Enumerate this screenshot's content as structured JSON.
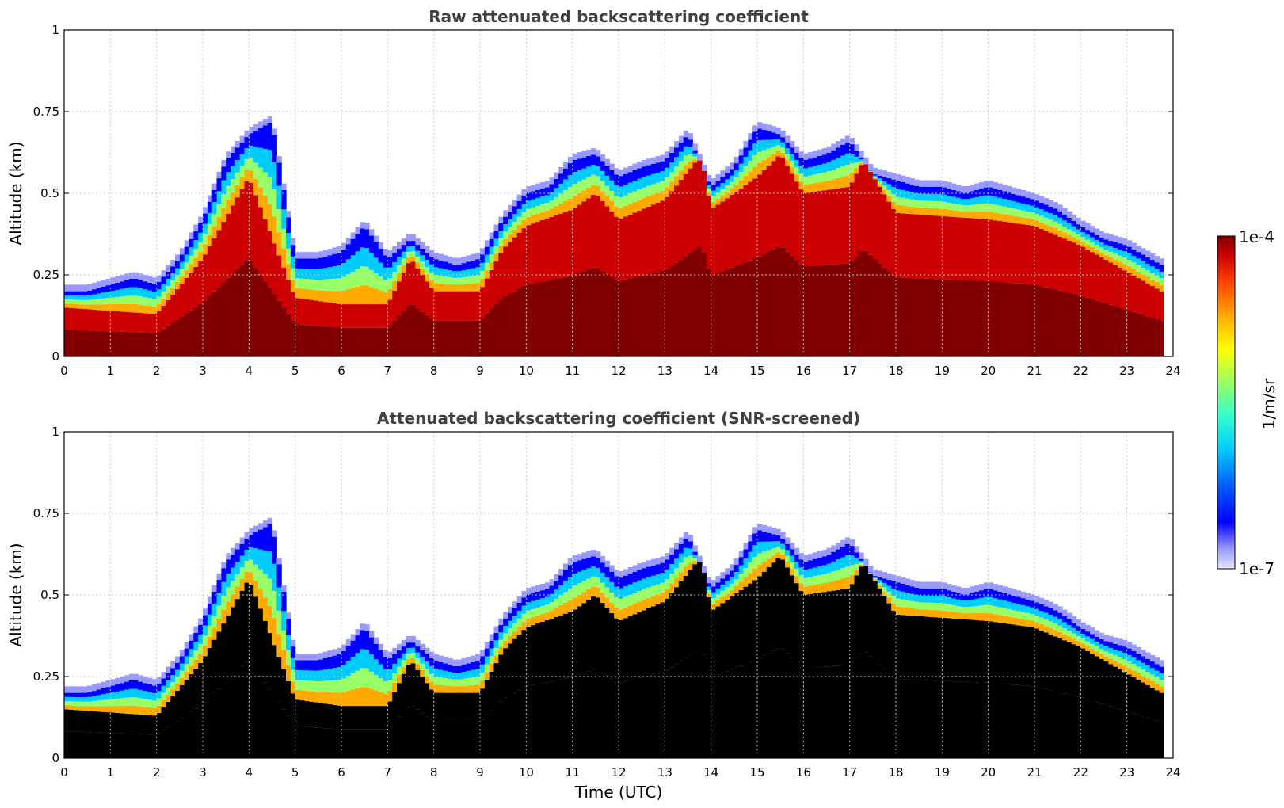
{
  "colors": {
    "jet": [
      "#e6e6fa",
      "#9999ff",
      "#0000ff",
      "#0066ff",
      "#00ccff",
      "#33ffcc",
      "#99ff66",
      "#ffff00",
      "#ffaa00",
      "#ff4400",
      "#cc0000",
      "#800000"
    ],
    "screened_fill": "#000000",
    "grid": "#c8c8c8"
  },
  "colorbar": {
    "label": "1/m/sr",
    "max_label": "1e-4",
    "min_label": "1e-7",
    "range": [
      1e-07,
      0.0001
    ]
  },
  "xlabel": "Time (UTC)",
  "chart_data": [
    {
      "type": "heatmap",
      "title": "Raw attenuated backscattering coefficient",
      "xlabel": "",
      "ylabel": "Altitude (km)",
      "xlim": [
        0,
        24
      ],
      "ylim": [
        0,
        1
      ],
      "xticks": [
        "0",
        "1",
        "2",
        "3",
        "4",
        "5",
        "6",
        "7",
        "8",
        "9",
        "10",
        "11",
        "12",
        "13",
        "14",
        "15",
        "16",
        "17",
        "18",
        "19",
        "20",
        "21",
        "22",
        "23",
        "24"
      ],
      "yticks": [
        "0",
        "0.25",
        "0.5",
        "0.75",
        "1"
      ],
      "grid": true,
      "layer_top_km": {
        "hours": [
          0,
          0.5,
          1,
          1.5,
          2,
          2.5,
          3,
          3.5,
          4,
          4.5,
          5,
          5.5,
          6,
          6.5,
          7,
          7.5,
          8,
          8.5,
          9,
          9.5,
          10,
          10.5,
          11,
          11.5,
          12,
          12.5,
          13,
          13.5,
          14,
          14.5,
          15,
          15.5,
          16,
          16.5,
          17,
          17.5,
          18,
          18.5,
          19,
          19.5,
          20,
          20.5,
          21,
          21.5,
          22,
          22.5,
          23,
          23.5,
          23.75
        ],
        "values": [
          0.2,
          0.2,
          0.22,
          0.24,
          0.22,
          0.3,
          0.42,
          0.6,
          0.68,
          0.72,
          0.3,
          0.3,
          0.32,
          0.4,
          0.3,
          0.36,
          0.3,
          0.28,
          0.3,
          0.42,
          0.5,
          0.52,
          0.6,
          0.62,
          0.55,
          0.58,
          0.6,
          0.68,
          0.52,
          0.58,
          0.7,
          0.68,
          0.6,
          0.62,
          0.66,
          0.56,
          0.54,
          0.52,
          0.52,
          0.5,
          0.52,
          0.5,
          0.48,
          0.45,
          0.4,
          0.36,
          0.34,
          0.3,
          0.28
        ]
      },
      "dense_core_top_km": {
        "hours": [
          0,
          1,
          2,
          3,
          4,
          5,
          6,
          7,
          7.5,
          8,
          9,
          9.5,
          10,
          11,
          11.5,
          12,
          13,
          13.8,
          14,
          15,
          15.5,
          16,
          17,
          17.3,
          18,
          19,
          20,
          21,
          22,
          23,
          23.75
        ],
        "values": [
          0.15,
          0.14,
          0.13,
          0.3,
          0.55,
          0.18,
          0.16,
          0.16,
          0.3,
          0.2,
          0.2,
          0.33,
          0.4,
          0.45,
          0.5,
          0.42,
          0.48,
          0.62,
          0.45,
          0.55,
          0.62,
          0.5,
          0.52,
          0.6,
          0.44,
          0.43,
          0.42,
          0.4,
          0.34,
          0.26,
          0.2
        ]
      }
    },
    {
      "type": "heatmap",
      "title": "Attenuated backscattering coefficient (SNR-screened)",
      "xlabel": "Time (UTC)",
      "ylabel": "Altitude (km)",
      "xlim": [
        0,
        24
      ],
      "ylim": [
        0,
        1
      ],
      "xticks": [
        "0",
        "1",
        "2",
        "3",
        "4",
        "5",
        "6",
        "7",
        "8",
        "9",
        "10",
        "11",
        "12",
        "13",
        "14",
        "15",
        "16",
        "17",
        "18",
        "19",
        "20",
        "21",
        "22",
        "23",
        "24"
      ],
      "yticks": [
        "0",
        "0.25",
        "0.5",
        "0.75",
        "1"
      ],
      "grid": true,
      "layer_top_km": {
        "hours": [
          0,
          0.5,
          1,
          1.5,
          2,
          2.5,
          3,
          3.5,
          4,
          4.5,
          5,
          5.5,
          6,
          6.5,
          7,
          7.5,
          8,
          8.5,
          9,
          9.5,
          10,
          10.5,
          11,
          11.5,
          12,
          12.5,
          13,
          13.5,
          14,
          14.5,
          15,
          15.5,
          16,
          16.5,
          17,
          17.5,
          18,
          18.5,
          19,
          19.5,
          20,
          20.5,
          21,
          21.5,
          22,
          22.5,
          23,
          23.5,
          23.75
        ],
        "values": [
          0.2,
          0.2,
          0.22,
          0.24,
          0.22,
          0.3,
          0.42,
          0.6,
          0.68,
          0.72,
          0.3,
          0.3,
          0.32,
          0.4,
          0.3,
          0.36,
          0.3,
          0.28,
          0.3,
          0.42,
          0.5,
          0.52,
          0.6,
          0.62,
          0.55,
          0.58,
          0.6,
          0.68,
          0.52,
          0.58,
          0.7,
          0.68,
          0.6,
          0.62,
          0.66,
          0.56,
          0.54,
          0.52,
          0.52,
          0.5,
          0.52,
          0.5,
          0.48,
          0.45,
          0.4,
          0.36,
          0.34,
          0.3,
          0.28
        ]
      },
      "screened_core_top_km": {
        "hours": [
          0,
          1,
          2,
          3,
          4,
          5,
          6,
          7,
          7.5,
          8,
          9,
          9.5,
          10,
          11,
          11.5,
          12,
          13,
          13.8,
          14,
          15,
          15.5,
          16,
          17,
          17.3,
          18,
          19,
          20,
          21,
          22,
          23,
          23.75
        ],
        "values": [
          0.15,
          0.14,
          0.13,
          0.3,
          0.55,
          0.18,
          0.16,
          0.16,
          0.3,
          0.2,
          0.2,
          0.33,
          0.4,
          0.45,
          0.5,
          0.42,
          0.48,
          0.62,
          0.45,
          0.55,
          0.62,
          0.5,
          0.52,
          0.6,
          0.44,
          0.43,
          0.42,
          0.4,
          0.34,
          0.26,
          0.2
        ]
      }
    }
  ]
}
